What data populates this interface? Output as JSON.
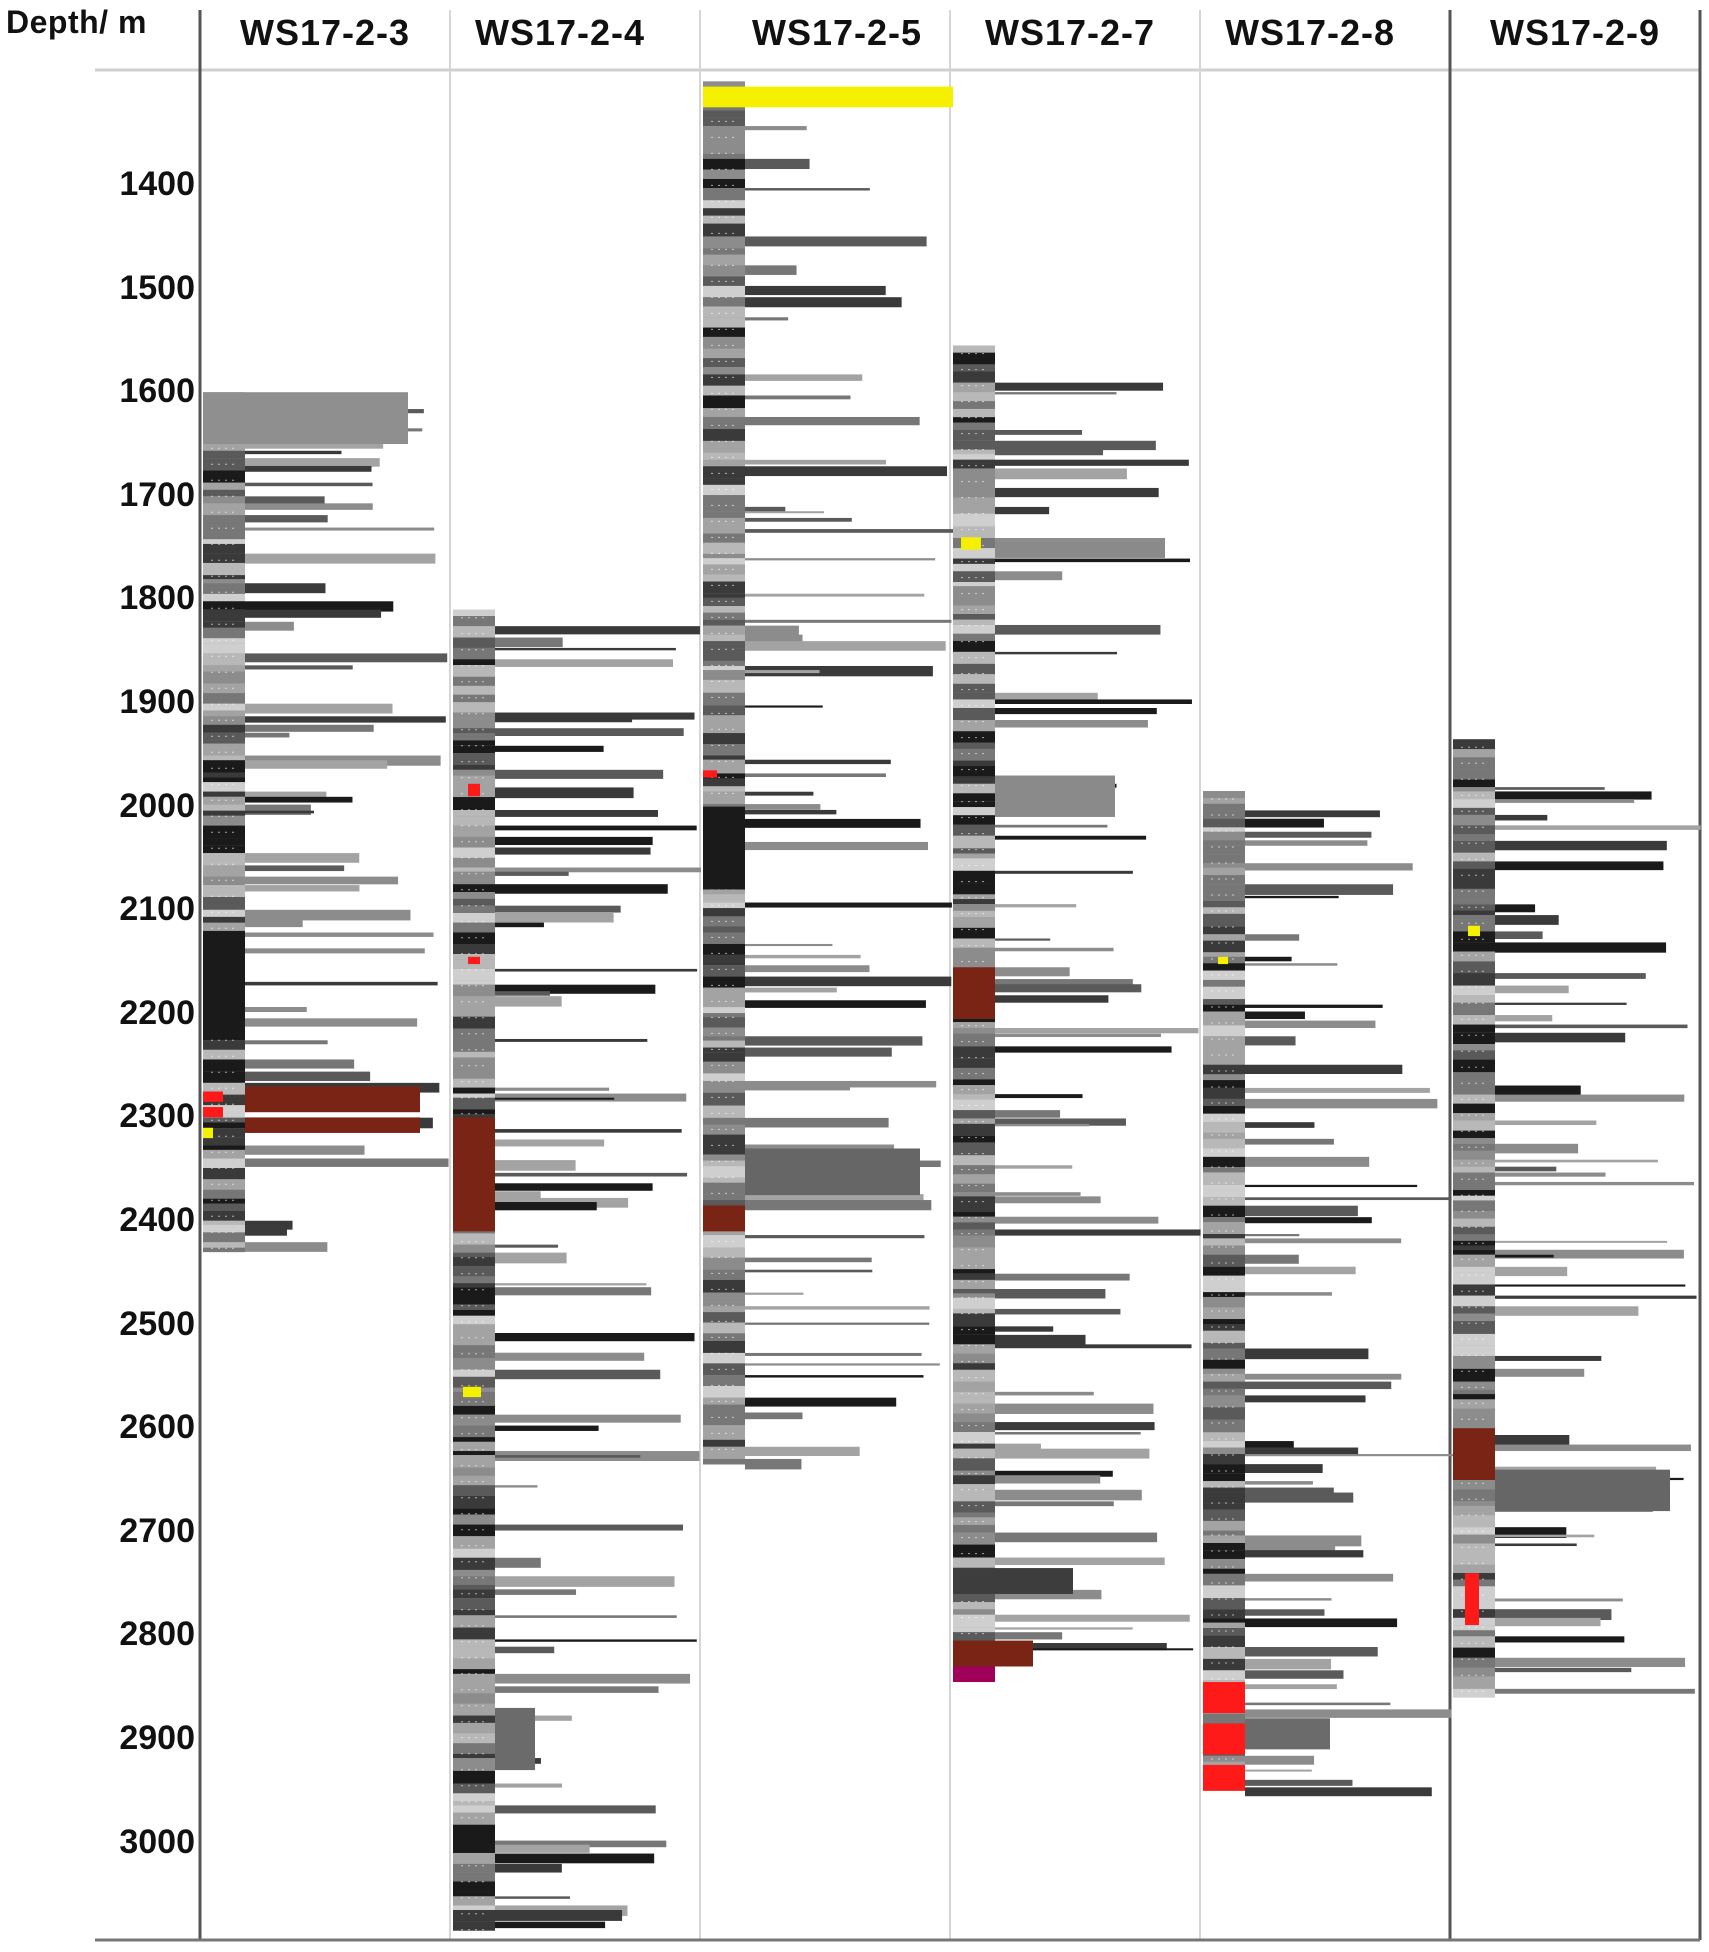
{
  "axis": {
    "header": "Depth/ m",
    "ticks": [
      "1400",
      "1500",
      "1600",
      "1700",
      "1800",
      "1900",
      "2000",
      "2100",
      "2200",
      "2300",
      "2400",
      "2500",
      "2600",
      "2700",
      "2800",
      "2900",
      "3000"
    ]
  },
  "wells": [
    {
      "name": "WS17-2-3",
      "top_m": 1600,
      "bottom_m": 2430
    },
    {
      "name": "WS17-2-4",
      "top_m": 1810,
      "bottom_m": 3085
    },
    {
      "name": "WS17-2-5",
      "top_m": 1300,
      "bottom_m": 2635
    },
    {
      "name": "WS17-2-7",
      "top_m": 1555,
      "bottom_m": 2840
    },
    {
      "name": "WS17-2-8",
      "top_m": 1985,
      "bottom_m": 2950
    },
    {
      "name": "WS17-2-9",
      "top_m": 1935,
      "bottom_m": 2860
    }
  ],
  "legend_colors": {
    "mudstone_dark": "#1a1a1a",
    "mudstone_grey": "#8c8c8c",
    "siltstone": "#b5b5b5",
    "sandstone_red": "#ff1a1a",
    "brown_mudstone": "#7a2416",
    "coal_yellow": "#f5f000",
    "magenta": "#a0005a"
  }
}
